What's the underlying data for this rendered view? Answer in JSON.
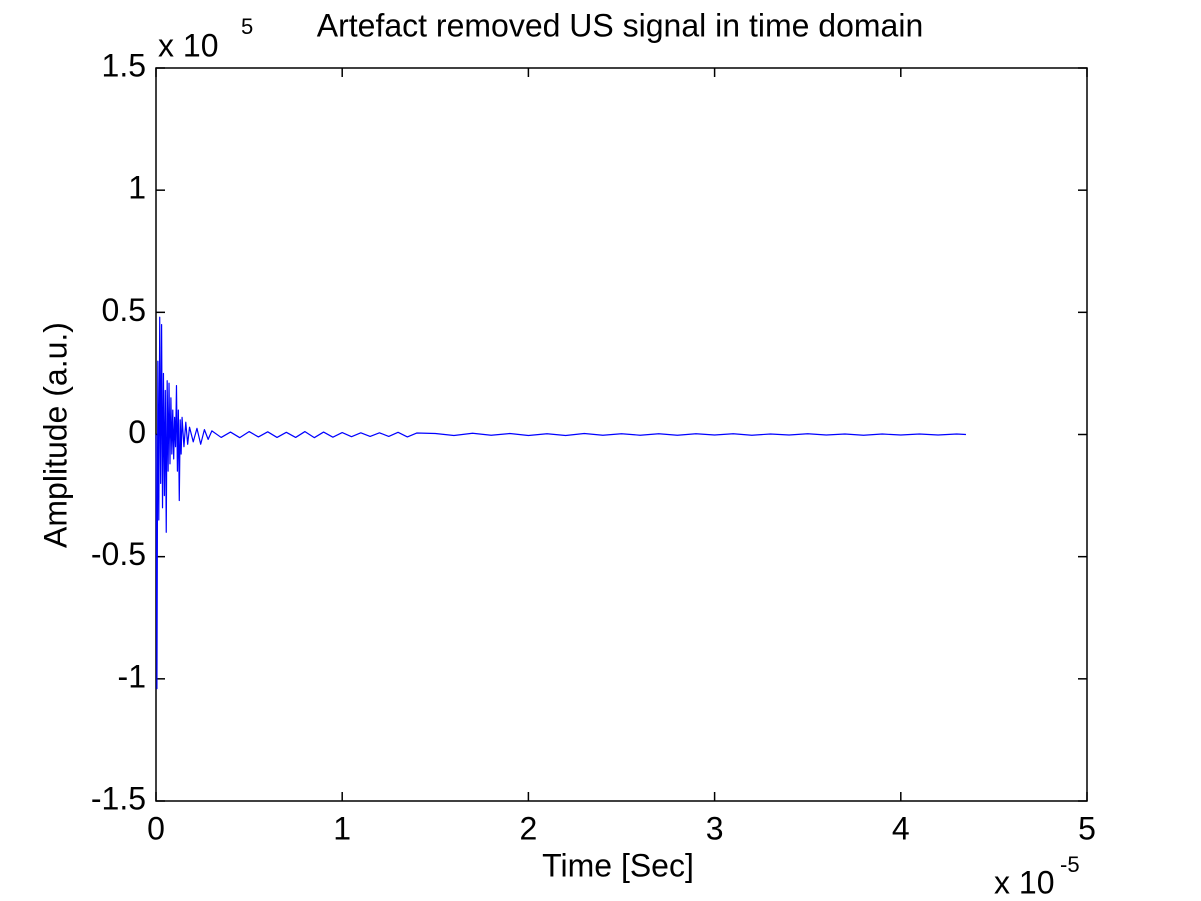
{
  "chart_data": {
    "type": "line",
    "title": "Artefact removed US signal in time domain",
    "xlabel": "Time [Sec]",
    "ylabel": "Amplitude (a.u.)",
    "x_scale_base": "x 10",
    "x_scale_exponent": "-5",
    "y_scale_base": "x 10",
    "y_scale_exponent": "5",
    "xlim": [
      0,
      5
    ],
    "xticks": [
      0,
      1,
      2,
      3,
      4,
      5
    ],
    "ylim": [
      -1.5,
      1.5
    ],
    "yticks": [
      -1.5,
      -1,
      -0.5,
      0,
      0.5,
      1,
      1.5
    ],
    "x": [
      0,
      0.005,
      0.01,
      0.015,
      0.02,
      0.025,
      0.03,
      0.035,
      0.04,
      0.045,
      0.05,
      0.055,
      0.06,
      0.065,
      0.07,
      0.075,
      0.08,
      0.085,
      0.09,
      0.095,
      0.1,
      0.105,
      0.11,
      0.115,
      0.12,
      0.125,
      0.13,
      0.135,
      0.14,
      0.15,
      0.16,
      0.17,
      0.18,
      0.2,
      0.22,
      0.24,
      0.26,
      0.28,
      0.3,
      0.35,
      0.4,
      0.45,
      0.5,
      0.55,
      0.6,
      0.65,
      0.7,
      0.75,
      0.8,
      0.85,
      0.9,
      0.95,
      1,
      1.05,
      1.1,
      1.15,
      1.2,
      1.25,
      1.3,
      1.35,
      1.4,
      1.5,
      1.6,
      1.7,
      1.8,
      1.9,
      2,
      2.1,
      2.2,
      2.3,
      2.4,
      2.5,
      2.6,
      2.7,
      2.8,
      2.9,
      3,
      3.1,
      3.2,
      3.3,
      3.4,
      3.5,
      3.6,
      3.7,
      3.8,
      3.9,
      4,
      4.1,
      4.2,
      4.3,
      4.35
    ],
    "series": [
      {
        "color": "#0000ff",
        "values": [
          0,
          -1.04,
          0.3,
          -0.35,
          0.48,
          -0.2,
          0.45,
          -0.3,
          0.25,
          -0.25,
          0.18,
          -0.4,
          0.22,
          -0.15,
          0.21,
          -0.12,
          0.15,
          -0.08,
          0.1,
          -0.1,
          0.07,
          -0.05,
          0.2,
          -0.15,
          0.1,
          -0.27,
          0.06,
          -0.08,
          0.07,
          -0.05,
          0.05,
          -0.04,
          0.03,
          -0.03,
          0.025,
          -0.04,
          0.02,
          -0.02,
          0.015,
          -0.012,
          0.01,
          -0.013,
          0.012,
          -0.01,
          0.011,
          -0.012,
          0.009,
          -0.012,
          0.012,
          -0.013,
          0.01,
          -0.011,
          0.008,
          -0.009,
          0.007,
          -0.008,
          0.007,
          -0.008,
          0.009,
          -0.01,
          0.006,
          0.004,
          -0.004,
          0.005,
          -0.003,
          0.004,
          -0.004,
          0.003,
          -0.004,
          0.004,
          -0.003,
          0.003,
          -0.003,
          0.003,
          -0.003,
          0.003,
          -0.002,
          0.003,
          -0.003,
          0.002,
          -0.002,
          0.003,
          -0.002,
          0.002,
          -0.003,
          0.002,
          -0.002,
          0.002,
          -0.002,
          0.002,
          0
        ]
      }
    ],
    "grid": false
  }
}
